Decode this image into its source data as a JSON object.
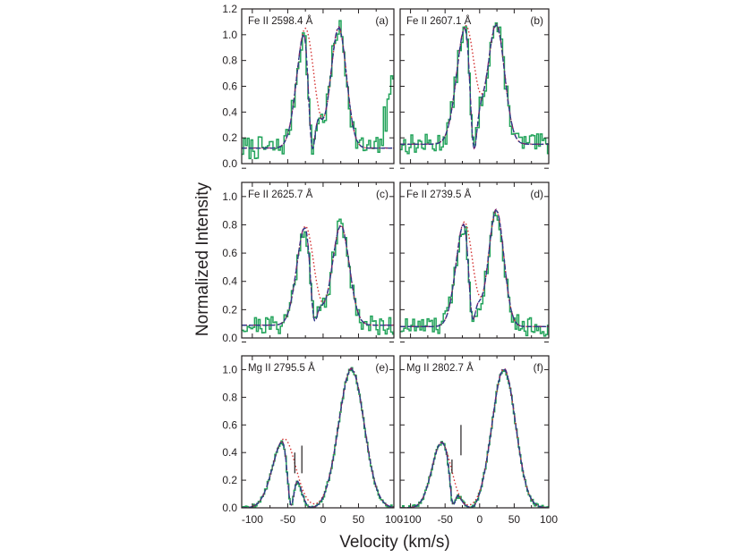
{
  "figure": {
    "ylabel": "Normalized Intensity",
    "xlabel": "Velocity (km/s)",
    "x_ticks": [
      -100,
      -50,
      0,
      50,
      100
    ],
    "x_range": [
      -115,
      100
    ],
    "colors": {
      "observed": "#22a35a",
      "model_full": "#2b3a8c",
      "model_alt": "#7a1f6b",
      "model_unabsorbed": "#d43232",
      "axis": "#231f20"
    }
  },
  "chart_data": [
    {
      "type": "line",
      "panel": "(a)",
      "title": "Fe II 2598.4 Å",
      "ylim": [
        0,
        1.2
      ],
      "y_ticks": [
        "0.0",
        "0.2",
        "0.4",
        "0.6",
        "0.8",
        "1.0",
        "1.2"
      ],
      "emission": {
        "p1": [
          -25,
          0.93,
          12
        ],
        "p2": [
          22,
          0.93,
          11
        ],
        "baseline": 0.12
      },
      "absorption": [
        [
          -15,
          0.85,
          5
        ]
      ],
      "obs": {
        "noise": 0.09,
        "seed": 7,
        "tail": true
      },
      "marks": []
    },
    {
      "type": "line",
      "panel": "(b)",
      "title": "Fe II 2607.1 Å",
      "ylim": [
        0,
        1.2
      ],
      "y_ticks": [],
      "emission": {
        "p1": [
          -20,
          0.92,
          13
        ],
        "p2": [
          24,
          0.92,
          12
        ],
        "baseline": 0.15
      },
      "absorption": [
        [
          -8,
          0.85,
          5
        ]
      ],
      "obs": {
        "noise": 0.08,
        "seed": 13,
        "tail": false
      },
      "marks": []
    },
    {
      "type": "line",
      "panel": "(c)",
      "title": "Fe II 2625.7 Å",
      "ylim": [
        0,
        1.1
      ],
      "y_ticks": [
        "0.0",
        "0.2",
        "0.4",
        "0.6",
        "0.8",
        "1.0"
      ],
      "emission": {
        "p1": [
          -25,
          0.7,
          12
        ],
        "p2": [
          25,
          0.7,
          12
        ],
        "baseline": 0.09
      },
      "absorption": [
        [
          -12,
          0.75,
          5
        ]
      ],
      "obs": {
        "noise": 0.07,
        "seed": 21,
        "tail": false
      },
      "marks": []
    },
    {
      "type": "line",
      "panel": "(d)",
      "title": "Fe II 2739.5 Å",
      "ylim": [
        0,
        1.1
      ],
      "y_ticks": [],
      "emission": {
        "p1": [
          -22,
          0.74,
          12
        ],
        "p2": [
          24,
          0.82,
          11
        ],
        "baseline": 0.08
      },
      "absorption": [
        [
          -10,
          0.75,
          5
        ]
      ],
      "obs": {
        "noise": 0.07,
        "seed": 33,
        "tail": false
      },
      "marks": []
    },
    {
      "type": "line",
      "panel": "(e)",
      "title": "Mg II 2795.5 Å",
      "ylim": [
        0,
        1.1
      ],
      "y_ticks": [
        "0.0",
        "0.2",
        "0.4",
        "0.6",
        "0.8",
        "1.0"
      ],
      "emission": {
        "p1": [
          -55,
          0.5,
          16
        ],
        "p2": [
          40,
          1.0,
          18
        ],
        "baseline": 0.0
      },
      "absorption": [
        [
          -45,
          0.95,
          5
        ],
        [
          -17,
          0.85,
          8
        ]
      ],
      "obs": {
        "noise": 0.015,
        "seed": 5,
        "tail": false
      },
      "marks": [
        [
          -40,
          0.25,
          0.4
        ],
        [
          -30,
          0.25,
          0.45
        ]
      ]
    },
    {
      "type": "line",
      "panel": "(f)",
      "title": "Mg II 2802.7 Å",
      "ylim": [
        0,
        1.1
      ],
      "y_ticks": [],
      "emission": {
        "p1": [
          -55,
          0.47,
          14
        ],
        "p2": [
          35,
          1.0,
          17
        ],
        "baseline": 0.0
      },
      "absorption": [
        [
          -38,
          0.9,
          4
        ],
        [
          -12,
          0.8,
          6
        ]
      ],
      "obs": {
        "noise": 0.015,
        "seed": 9,
        "tail": false
      },
      "marks": [
        [
          -40,
          0.25,
          0.35
        ],
        [
          -27,
          0.38,
          0.6
        ]
      ]
    }
  ]
}
